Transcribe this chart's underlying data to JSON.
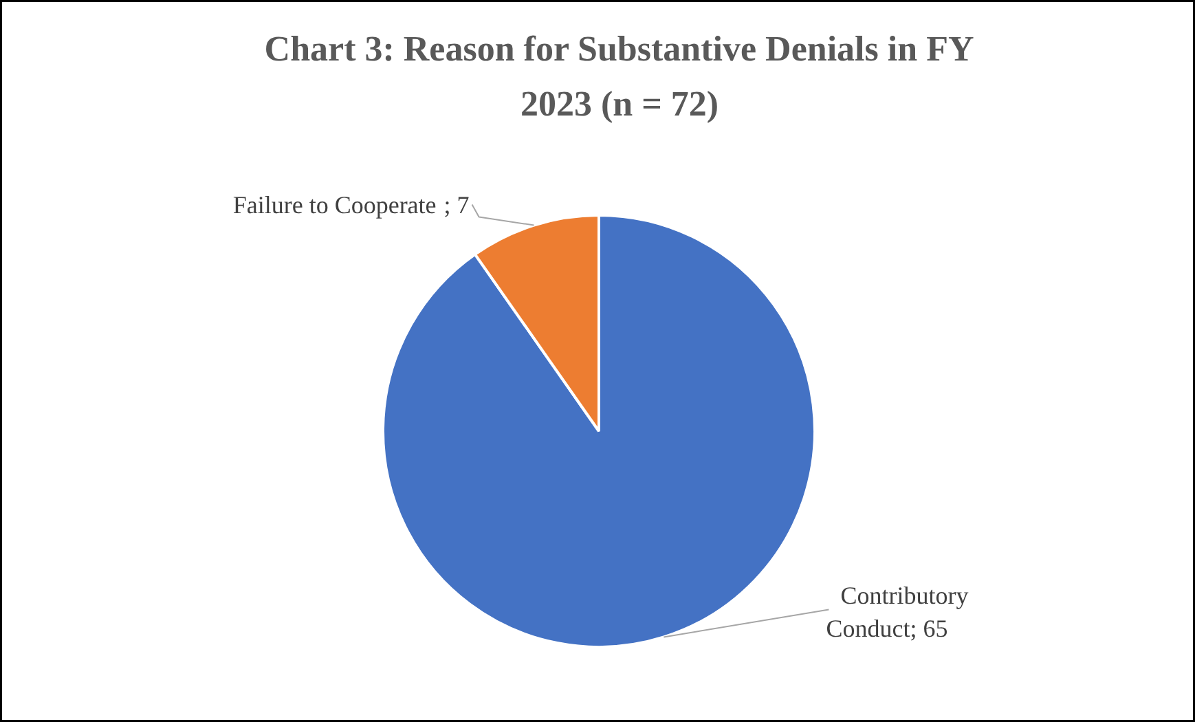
{
  "chart_data": {
    "type": "pie",
    "title": "Chart 3: Reason for Substantive Denials in FY 2023 (n = 72)",
    "categories": [
      "Contributory Conduct",
      "Failure to Cooperate"
    ],
    "values": [
      65,
      7
    ],
    "value_labels": [
      "; 65",
      "; 7"
    ],
    "colors": [
      "#4472c4",
      "#ed7d31"
    ]
  }
}
